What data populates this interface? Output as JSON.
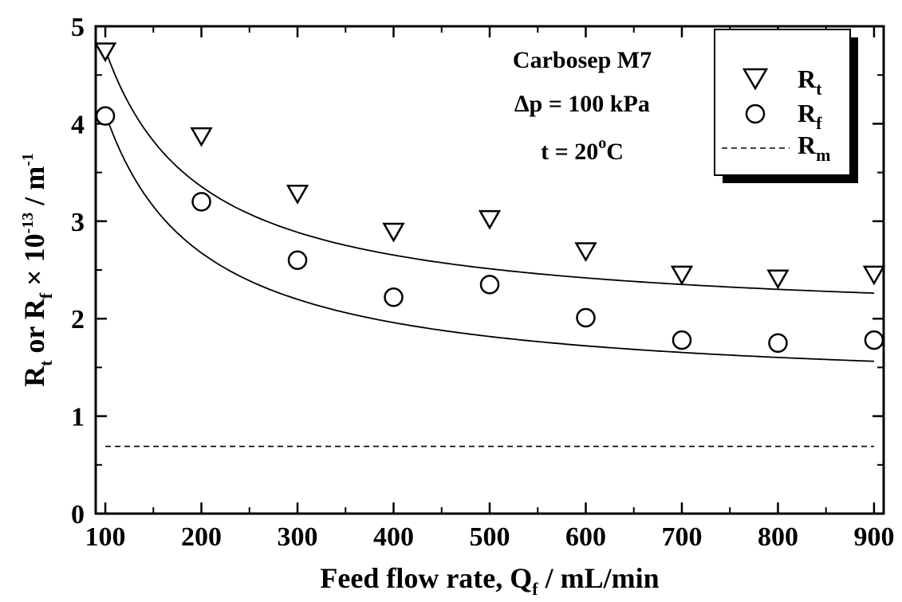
{
  "chart_data": {
    "type": "scatter",
    "x_label": {
      "main": "Feed flow rate, Q",
      "sub": "f",
      "tail": " / mL/min"
    },
    "y_label": {
      "p1": "R",
      "s1": "t",
      "p2": " or R",
      "s2": "f",
      "p3": " × 10",
      "sup1": "-13",
      "p4": " / m",
      "sup2": "-1"
    },
    "xlim": [
      90,
      910
    ],
    "ylim": [
      0,
      5
    ],
    "x_ticks": [
      100,
      200,
      300,
      400,
      500,
      600,
      700,
      800,
      900
    ],
    "y_ticks": [
      0,
      1,
      2,
      3,
      4,
      5
    ],
    "annotations": {
      "membrane": "Carbosep M7",
      "pressure": "∆p = 100 kPa",
      "temp_main": "t = 20",
      "temp_sup": "o",
      "temp_unit": "C"
    },
    "legend": {
      "position": "top-right",
      "entries": [
        {
          "symbol": "triangle-down",
          "main": "R",
          "sub": "t"
        },
        {
          "symbol": "circle",
          "main": "R",
          "sub": "f"
        },
        {
          "symbol": "dashed-line",
          "main": "R",
          "sub": "m"
        }
      ]
    },
    "series": [
      {
        "id": "Rt",
        "marker": "triangle-down",
        "x": [
          100,
          200,
          300,
          400,
          500,
          600,
          700,
          800,
          900
        ],
        "y": [
          4.75,
          3.88,
          3.29,
          2.9,
          3.03,
          2.7,
          2.46,
          2.42,
          2.46
        ],
        "fit": {
          "a": 1.95,
          "b": 281,
          "c": 0.1
        }
      },
      {
        "id": "Rf",
        "marker": "circle",
        "x": [
          100,
          200,
          300,
          400,
          500,
          600,
          700,
          800,
          900
        ],
        "y": [
          4.08,
          3.2,
          2.6,
          2.22,
          2.35,
          2.01,
          1.78,
          1.75,
          1.78
        ]
      },
      {
        "id": "Rm",
        "marker": "dashed-line",
        "y": 0.69
      }
    ],
    "fits": [
      {
        "series": "Rt",
        "a": 1.95,
        "b": 281,
        "c": 0.1
      },
      {
        "series": "Rf",
        "a": 1.245,
        "b": 286,
        "c": 0.1
      }
    ]
  }
}
